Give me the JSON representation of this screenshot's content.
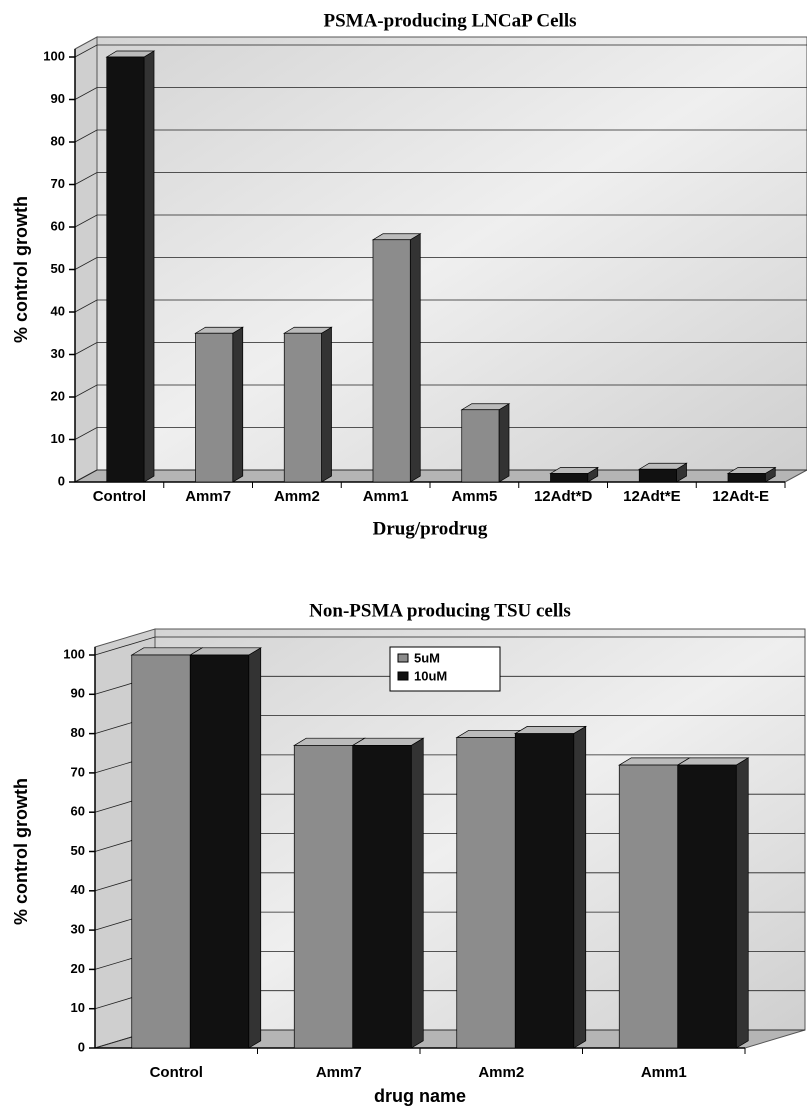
{
  "chart_data": [
    {
      "type": "bar",
      "title": "PSMA-producing LNCaP Cells",
      "y_label": "% control growth",
      "x_label": "Drug/prodrug",
      "categories": [
        "Control",
        "Amm7",
        "Amm2",
        "Amm1",
        "Amm5",
        "12Adt*D",
        "12Adt*E",
        "12Adt-E"
      ],
      "values": [
        100,
        35,
        35,
        57,
        17,
        2,
        3,
        2
      ],
      "colors": [
        "#111111",
        "#8c8c8c",
        "#8c8c8c",
        "#8c8c8c",
        "#8c8c8c",
        "#111111",
        "#111111",
        "#111111"
      ],
      "ylim": [
        0,
        100
      ],
      "yticks": [
        0,
        10,
        20,
        30,
        40,
        50,
        60,
        70,
        80,
        90,
        100
      ],
      "grid": true
    },
    {
      "type": "grouped-bar",
      "title": "Non-PSMA producing TSU cells",
      "y_label": "% control growth",
      "x_label": "drug name",
      "categories": [
        "Control",
        "Amm7",
        "Amm2",
        "Amm1"
      ],
      "series": [
        {
          "name": "5uM",
          "color": "#8c8c8c",
          "values": [
            100,
            77,
            79,
            72
          ]
        },
        {
          "name": "10uM",
          "color": "#111111",
          "values": [
            100,
            77,
            80,
            72
          ]
        }
      ],
      "ylim": [
        0,
        100
      ],
      "yticks": [
        0,
        10,
        20,
        30,
        40,
        50,
        60,
        70,
        80,
        90,
        100
      ],
      "grid": true,
      "legend": "top-center"
    }
  ]
}
